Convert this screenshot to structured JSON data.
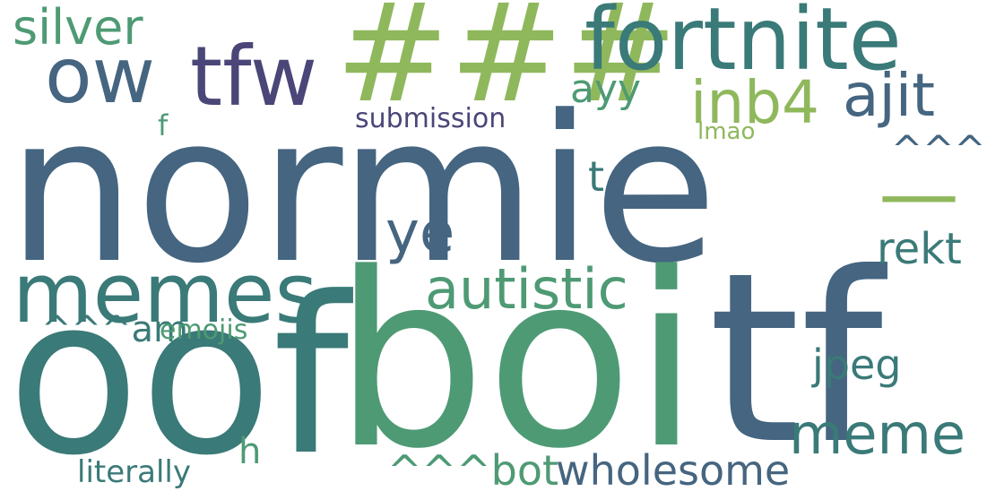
{
  "palette": {
    "slate": "#456580",
    "teal": "#3a7a78",
    "green": "#4e9a74",
    "lime": "#8fb85c",
    "purple": "#4a4678"
  },
  "words": {
    "normie": "normie",
    "oof": "oof",
    "boi": "boi",
    "tf": "tf",
    "hashes": "###",
    "fortnite": "fortnite",
    "tfw": "tfw",
    "ow": "ow",
    "silver": "silver",
    "memes": "memes",
    "inb4": "inb4",
    "ajit": "ajit",
    "ayy": "ayy",
    "submission": "submission",
    "f": "f",
    "lmao": "lmao",
    "caret_a": "^^^a",
    "t": "t",
    "dash": "—",
    "ye": "ye",
    "rekt": "rekt",
    "autistic": "autistic",
    "caret_am": "^^^am",
    "emojis": "emojis",
    "jpeg": "jpeg",
    "meme": "meme",
    "h": "h",
    "caret_bot": "^^^bot",
    "wholesome": "wholesome",
    "literally": "literally"
  }
}
